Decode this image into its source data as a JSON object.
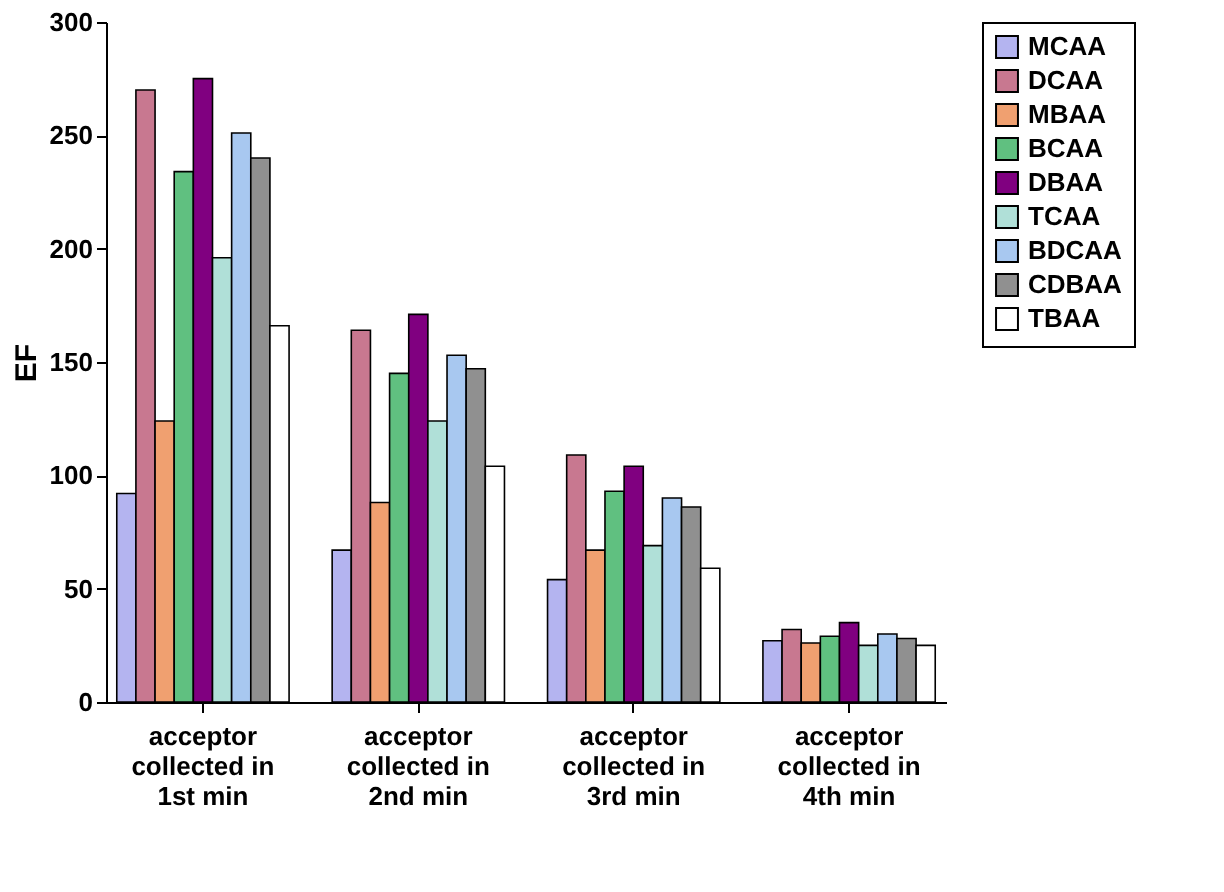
{
  "chart_data": {
    "type": "bar",
    "ylabel": "EF",
    "categories": [
      "acceptor collected in 1st min",
      "acceptor collected in 2nd min",
      "acceptor collected in 3rd min",
      "acceptor collected in 4th min"
    ],
    "series": [
      {
        "name": "MCAA",
        "color": "#b4b4f0",
        "values": [
          92,
          67,
          54,
          27
        ]
      },
      {
        "name": "DCAA",
        "color": "#c87890",
        "values": [
          270,
          164,
          109,
          32
        ]
      },
      {
        "name": "MBAA",
        "color": "#f0a070",
        "values": [
          124,
          88,
          67,
          26
        ]
      },
      {
        "name": "BCAA",
        "color": "#60c080",
        "values": [
          234,
          145,
          93,
          29
        ]
      },
      {
        "name": "DBAA",
        "color": "#800080",
        "values": [
          275,
          171,
          104,
          35
        ]
      },
      {
        "name": "TCAA",
        "color": "#b0e0d8",
        "values": [
          196,
          124,
          69,
          25
        ]
      },
      {
        "name": "BDCAA",
        "color": "#a8c8f0",
        "values": [
          251,
          153,
          90,
          30
        ]
      },
      {
        "name": "CDBAA",
        "color": "#909090",
        "values": [
          240,
          147,
          86,
          28
        ]
      },
      {
        "name": "TBAA",
        "color": "#ffffff",
        "values": [
          166,
          104,
          59,
          25
        ]
      }
    ],
    "ylim": [
      0,
      300
    ],
    "yticks": [
      0,
      50,
      100,
      150,
      200,
      250,
      300
    ],
    "grid": false,
    "legend": "right"
  }
}
